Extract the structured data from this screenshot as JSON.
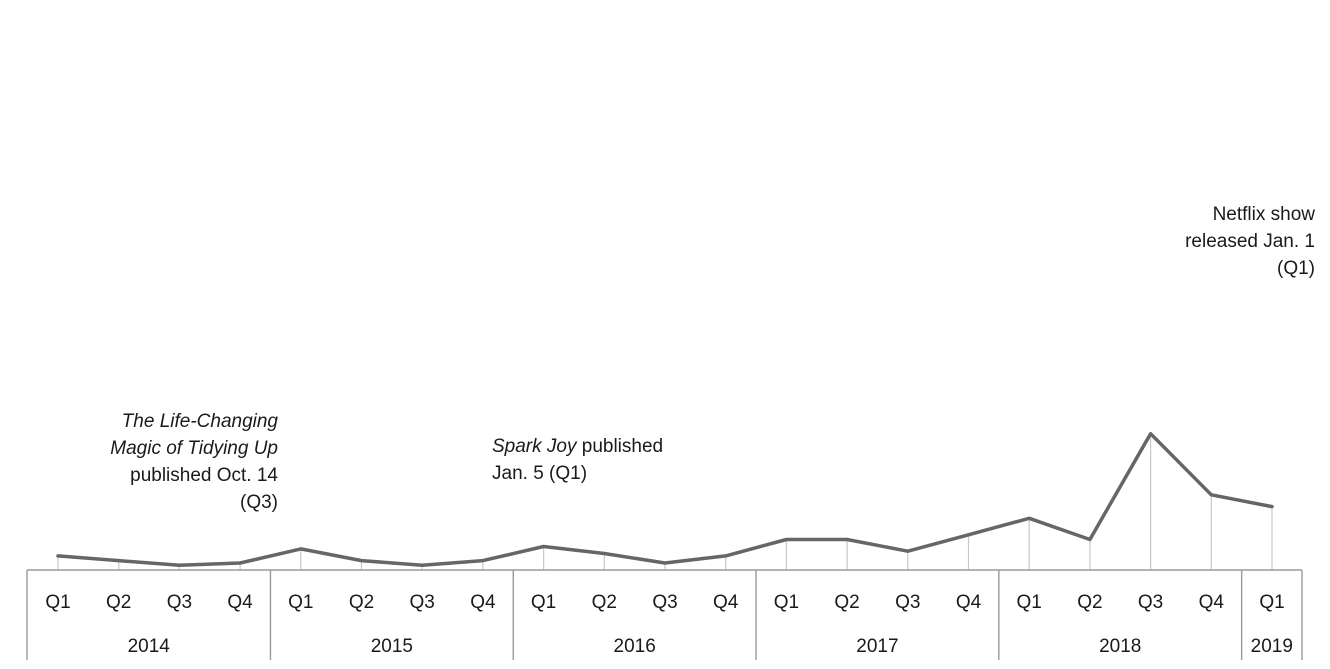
{
  "chart_data": {
    "type": "line",
    "title": "",
    "xlabel": "",
    "ylabel": "",
    "ylim": [
      0,
      100
    ],
    "grid": false,
    "legend": "none",
    "line_color": "#666666",
    "x": [
      {
        "quarter": "Q1",
        "year": "2014"
      },
      {
        "quarter": "Q2",
        "year": "2014"
      },
      {
        "quarter": "Q3",
        "year": "2014"
      },
      {
        "quarter": "Q4",
        "year": "2014"
      },
      {
        "quarter": "Q1",
        "year": "2015"
      },
      {
        "quarter": "Q2",
        "year": "2015"
      },
      {
        "quarter": "Q3",
        "year": "2015"
      },
      {
        "quarter": "Q4",
        "year": "2015"
      },
      {
        "quarter": "Q1",
        "year": "2016"
      },
      {
        "quarter": "Q2",
        "year": "2016"
      },
      {
        "quarter": "Q3",
        "year": "2016"
      },
      {
        "quarter": "Q4",
        "year": "2016"
      },
      {
        "quarter": "Q1",
        "year": "2017"
      },
      {
        "quarter": "Q2",
        "year": "2017"
      },
      {
        "quarter": "Q3",
        "year": "2017"
      },
      {
        "quarter": "Q4",
        "year": "2017"
      },
      {
        "quarter": "Q1",
        "year": "2018"
      },
      {
        "quarter": "Q2",
        "year": "2018"
      },
      {
        "quarter": "Q3",
        "year": "2018"
      },
      {
        "quarter": "Q4",
        "year": "2018"
      },
      {
        "quarter": "Q1",
        "year": "2019"
      }
    ],
    "years": [
      "2014",
      "2015",
      "2016",
      "2017",
      "2018",
      "2019"
    ],
    "values": [
      3,
      2,
      1,
      1.5,
      4.5,
      2,
      1,
      2,
      5,
      3.5,
      1.5,
      3,
      6.5,
      6.5,
      4,
      7.5,
      11,
      6.5,
      29,
      16,
      13.5
    ],
    "annotations": [
      {
        "lines": [
          {
            "parts": [
              {
                "text": "The Life-Changing",
                "italic": true
              }
            ]
          },
          {
            "parts": [
              {
                "text": "Magic of Tidying Up",
                "italic": true
              }
            ]
          },
          {
            "parts": [
              {
                "text": "published Oct. 14",
                "italic": false
              }
            ]
          },
          {
            "parts": [
              {
                "text": "(Q3)",
                "italic": false
              }
            ]
          }
        ]
      },
      {
        "lines": [
          {
            "parts": [
              {
                "text": "Spark Joy",
                "italic": true
              },
              {
                "text": " published",
                "italic": false
              }
            ]
          },
          {
            "parts": [
              {
                "text": "Jan. 5 (Q1)",
                "italic": false
              }
            ]
          }
        ]
      },
      {
        "lines": [
          {
            "parts": [
              {
                "text": "Netflix show",
                "italic": false
              }
            ]
          },
          {
            "parts": [
              {
                "text": "released Jan. 1",
                "italic": false
              }
            ]
          },
          {
            "parts": [
              {
                "text": "(Q1)",
                "italic": false
              }
            ]
          }
        ]
      }
    ]
  }
}
